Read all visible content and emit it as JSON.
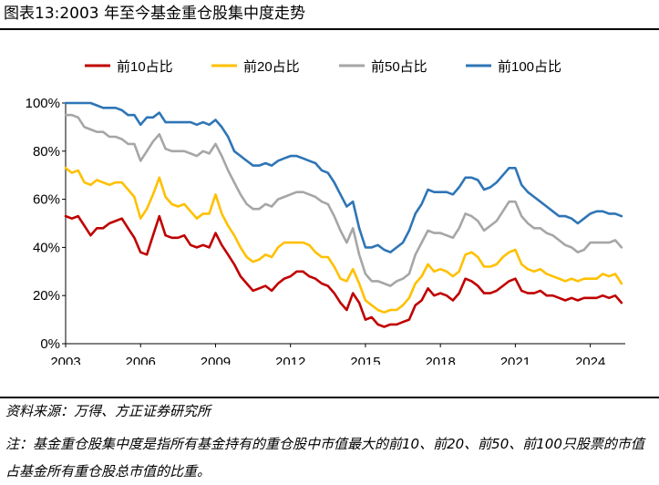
{
  "figure_title": "图表13:2003 年至今基金重仓股集中度走势",
  "source": "资料来源：万得、方正证券研究所",
  "note": "注：基金重仓股集中度是指所有基金持有的重仓股中市值最大的前10、前20、前50、前100只股票的市值占基金所有重仓股总市值的比重。",
  "colors": {
    "top10": "#C00000",
    "top20": "#FFC000",
    "top50": "#A6A6A6",
    "top100": "#2E75B6"
  },
  "chart_data": {
    "type": "line",
    "title": "",
    "xlabel": "",
    "ylabel": "",
    "ylim": [
      0,
      100
    ],
    "xlim": [
      2003,
      2025.4
    ],
    "y_ticks": [
      "0%",
      "20%",
      "40%",
      "60%",
      "80%",
      "100%"
    ],
    "x_ticks": [
      "2003",
      "2006",
      "2009",
      "2012",
      "2015",
      "2018",
      "2021",
      "2024"
    ],
    "legend_position": "top",
    "x": [
      2003.0,
      2003.25,
      2003.5,
      2003.75,
      2004.0,
      2004.25,
      2004.5,
      2004.75,
      2005.0,
      2005.25,
      2005.5,
      2005.75,
      2006.0,
      2006.25,
      2006.5,
      2006.75,
      2007.0,
      2007.25,
      2007.5,
      2007.75,
      2008.0,
      2008.25,
      2008.5,
      2008.75,
      2009.0,
      2009.25,
      2009.5,
      2009.75,
      2010.0,
      2010.25,
      2010.5,
      2010.75,
      2011.0,
      2011.25,
      2011.5,
      2011.75,
      2012.0,
      2012.25,
      2012.5,
      2012.75,
      2013.0,
      2013.25,
      2013.5,
      2013.75,
      2014.0,
      2014.25,
      2014.5,
      2014.75,
      2015.0,
      2015.25,
      2015.5,
      2015.75,
      2016.0,
      2016.25,
      2016.5,
      2016.75,
      2017.0,
      2017.25,
      2017.5,
      2017.75,
      2018.0,
      2018.25,
      2018.5,
      2018.75,
      2019.0,
      2019.25,
      2019.5,
      2019.75,
      2020.0,
      2020.25,
      2020.5,
      2020.75,
      2021.0,
      2021.25,
      2021.5,
      2021.75,
      2022.0,
      2022.25,
      2022.5,
      2022.75,
      2023.0,
      2023.25,
      2023.5,
      2023.75,
      2024.0,
      2024.25,
      2024.5,
      2024.75,
      2025.0,
      2025.25
    ],
    "series": [
      {
        "name": "前10占比",
        "color_key": "top10",
        "values": [
          53,
          52,
          53,
          49,
          45,
          48,
          48,
          50,
          51,
          52,
          48,
          44,
          38,
          37,
          45,
          53,
          45,
          44,
          44,
          45,
          41,
          40,
          41,
          40,
          46,
          41,
          37,
          33,
          28,
          25,
          22,
          23,
          24,
          22,
          25,
          27,
          28,
          30,
          30,
          28,
          27,
          25,
          24,
          21,
          17,
          14,
          21,
          17,
          10,
          11,
          8,
          7,
          8,
          8,
          9,
          10,
          16,
          18,
          23,
          20,
          21,
          20,
          18,
          21,
          27,
          26,
          24,
          21,
          21,
          22,
          24,
          26,
          27,
          22,
          21,
          21,
          22,
          20,
          20,
          19,
          18,
          19,
          18,
          19,
          19,
          19,
          20,
          19,
          20,
          17
        ]
      },
      {
        "name": "前20占比",
        "color_key": "top20",
        "values": [
          73,
          71,
          72,
          67,
          66,
          68,
          67,
          66,
          67,
          67,
          64,
          61,
          52,
          56,
          62,
          69,
          61,
          58,
          57,
          58,
          55,
          52,
          54,
          54,
          62,
          54,
          49,
          45,
          40,
          36,
          34,
          35,
          37,
          36,
          40,
          42,
          42,
          42,
          42,
          41,
          38,
          36,
          36,
          32,
          27,
          26,
          31,
          25,
          18,
          16,
          14,
          13,
          14,
          14,
          16,
          19,
          25,
          28,
          33,
          30,
          31,
          30,
          28,
          30,
          37,
          38,
          36,
          32,
          32,
          33,
          36,
          38,
          39,
          33,
          31,
          30,
          31,
          29,
          28,
          27,
          26,
          27,
          26,
          27,
          27,
          27,
          29,
          28,
          29,
          25
        ]
      },
      {
        "name": "前50占比",
        "color_key": "top50",
        "values": [
          95,
          95,
          94,
          90,
          89,
          88,
          88,
          86,
          86,
          85,
          83,
          83,
          76,
          80,
          84,
          87,
          81,
          80,
          80,
          80,
          79,
          78,
          80,
          79,
          83,
          78,
          72,
          67,
          62,
          58,
          56,
          56,
          58,
          57,
          60,
          61,
          62,
          63,
          63,
          62,
          61,
          59,
          58,
          53,
          47,
          42,
          48,
          37,
          29,
          26,
          26,
          25,
          24,
          26,
          27,
          29,
          37,
          42,
          47,
          46,
          46,
          45,
          44,
          48,
          54,
          53,
          51,
          47,
          49,
          51,
          55,
          59,
          59,
          53,
          50,
          48,
          48,
          46,
          45,
          43,
          41,
          40,
          38,
          39,
          42,
          42,
          42,
          42,
          43,
          40
        ]
      },
      {
        "name": "前100占比",
        "color_key": "top100",
        "values": [
          100,
          100,
          100,
          100,
          100,
          99,
          98,
          98,
          98,
          97,
          95,
          95,
          91,
          94,
          94,
          96,
          92,
          92,
          92,
          92,
          92,
          91,
          92,
          91,
          93,
          90,
          86,
          80,
          78,
          76,
          74,
          74,
          75,
          74,
          76,
          77,
          78,
          78,
          77,
          76,
          75,
          72,
          71,
          67,
          62,
          57,
          59,
          48,
          40,
          40,
          41,
          39,
          38,
          40,
          42,
          47,
          54,
          58,
          64,
          63,
          63,
          63,
          62,
          65,
          69,
          69,
          68,
          64,
          65,
          67,
          70,
          73,
          73,
          66,
          63,
          61,
          59,
          57,
          55,
          53,
          53,
          52,
          50,
          52,
          54,
          55,
          55,
          54,
          54,
          53
        ]
      }
    ]
  }
}
